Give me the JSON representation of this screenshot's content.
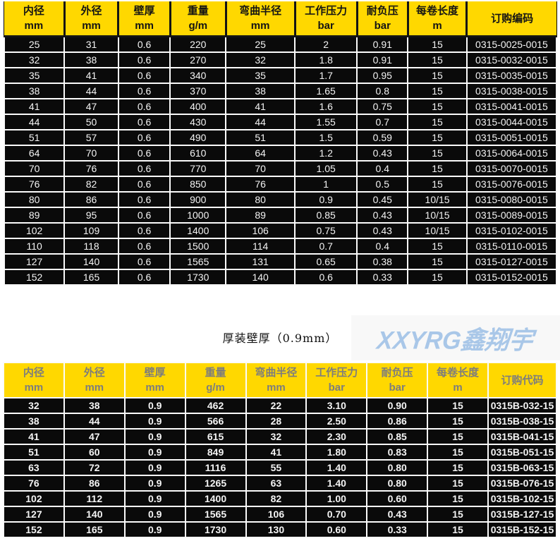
{
  "colors": {
    "header_yellow": "#FFD800",
    "row_black": "#0A0A0A",
    "grid_white": "#FBFBFB",
    "logo_blue": "#A9C7E8",
    "thick_header_text": "#7D7D7D"
  },
  "caption": "厚装壁厚（0.9mm）",
  "logo_text": "XXYRG鑫翔宇",
  "table_thin": {
    "headers": [
      [
        "内径",
        "mm"
      ],
      [
        "外径",
        "mm"
      ],
      [
        "壁厚",
        "mm"
      ],
      [
        "重量",
        "g/m"
      ],
      [
        "弯曲半径",
        "mm"
      ],
      [
        "工作压力",
        "bar"
      ],
      [
        "耐负压",
        "bar"
      ],
      [
        "每卷长度",
        "m"
      ],
      [
        "订购编码",
        ""
      ]
    ],
    "rows": [
      [
        "25",
        "31",
        "0.6",
        "220",
        "25",
        "2",
        "0.91",
        "15",
        "0315-0025-0015"
      ],
      [
        "32",
        "38",
        "0.6",
        "270",
        "32",
        "1.8",
        "0.91",
        "15",
        "0315-0032-0015"
      ],
      [
        "35",
        "41",
        "0.6",
        "340",
        "35",
        "1.7",
        "0.95",
        "15",
        "0315-0035-0015"
      ],
      [
        "38",
        "44",
        "0.6",
        "370",
        "38",
        "1.65",
        "0.8",
        "15",
        "0315-0038-0015"
      ],
      [
        "41",
        "47",
        "0.6",
        "400",
        "41",
        "1.6",
        "0.75",
        "15",
        "0315-0041-0015"
      ],
      [
        "44",
        "50",
        "0.6",
        "430",
        "44",
        "1.55",
        "0.7",
        "15",
        "0315-0044-0015"
      ],
      [
        "51",
        "57",
        "0.6",
        "490",
        "51",
        "1.5",
        "0.59",
        "15",
        "0315-0051-0015"
      ],
      [
        "64",
        "70",
        "0.6",
        "610",
        "64",
        "1.2",
        "0.43",
        "15",
        "0315-0064-0015"
      ],
      [
        "70",
        "76",
        "0.6",
        "770",
        "70",
        "1.05",
        "0.4",
        "15",
        "0315-0070-0015"
      ],
      [
        "76",
        "82",
        "0.6",
        "850",
        "76",
        "1",
        "0.5",
        "15",
        "0315-0076-0015"
      ],
      [
        "80",
        "86",
        "0.6",
        "900",
        "80",
        "0.9",
        "0.45",
        "10/15",
        "0315-0080-0015"
      ],
      [
        "89",
        "95",
        "0.6",
        "1000",
        "89",
        "0.85",
        "0.43",
        "10/15",
        "0315-0089-0015"
      ],
      [
        "102",
        "109",
        "0.6",
        "1400",
        "106",
        "0.75",
        "0.43",
        "10/15",
        "0315-0102-0015"
      ],
      [
        "110",
        "118",
        "0.6",
        "1500",
        "114",
        "0.7",
        "0.4",
        "15",
        "0315-0110-0015"
      ],
      [
        "127",
        "140",
        "0.6",
        "1565",
        "131",
        "0.65",
        "0.38",
        "15",
        "0315-0127-0015"
      ],
      [
        "152",
        "165",
        "0.6",
        "1730",
        "140",
        "0.6",
        "0.33",
        "15",
        "0315-0152-0015"
      ]
    ]
  },
  "table_thick": {
    "headers": [
      [
        "内径",
        "mm"
      ],
      [
        "外径",
        "mm"
      ],
      [
        "壁厚",
        "mm"
      ],
      [
        "重量",
        "g/m"
      ],
      [
        "弯曲半径",
        "mm"
      ],
      [
        "工作压力",
        "bar"
      ],
      [
        "耐负压",
        "bar"
      ],
      [
        "每卷长度",
        "m"
      ],
      [
        "订购代码",
        ""
      ]
    ],
    "rows": [
      [
        "32",
        "38",
        "0.9",
        "462",
        "22",
        "3.10",
        "0.90",
        "15",
        "0315B-032-15"
      ],
      [
        "38",
        "44",
        "0.9",
        "566",
        "28",
        "2.50",
        "0.86",
        "15",
        "0315B-038-15"
      ],
      [
        "41",
        "47",
        "0.9",
        "615",
        "32",
        "2.30",
        "0.85",
        "15",
        "0315B-041-15"
      ],
      [
        "51",
        "60",
        "0.9",
        "849",
        "41",
        "1.80",
        "0.83",
        "15",
        "0315B-051-15"
      ],
      [
        "63",
        "72",
        "0.9",
        "1116",
        "55",
        "1.40",
        "0.80",
        "15",
        "0315B-063-15"
      ],
      [
        "76",
        "86",
        "0.9",
        "1265",
        "63",
        "1.40",
        "0.80",
        "15",
        "0315B-076-15"
      ],
      [
        "102",
        "112",
        "0.9",
        "1400",
        "82",
        "1.00",
        "0.60",
        "15",
        "0315B-102-15"
      ],
      [
        "127",
        "140",
        "0.9",
        "1565",
        "106",
        "0.70",
        "0.43",
        "15",
        "0315B-127-15"
      ],
      [
        "152",
        "165",
        "0.9",
        "1730",
        "130",
        "0.60",
        "0.33",
        "15",
        "0315B-152-15"
      ]
    ]
  }
}
